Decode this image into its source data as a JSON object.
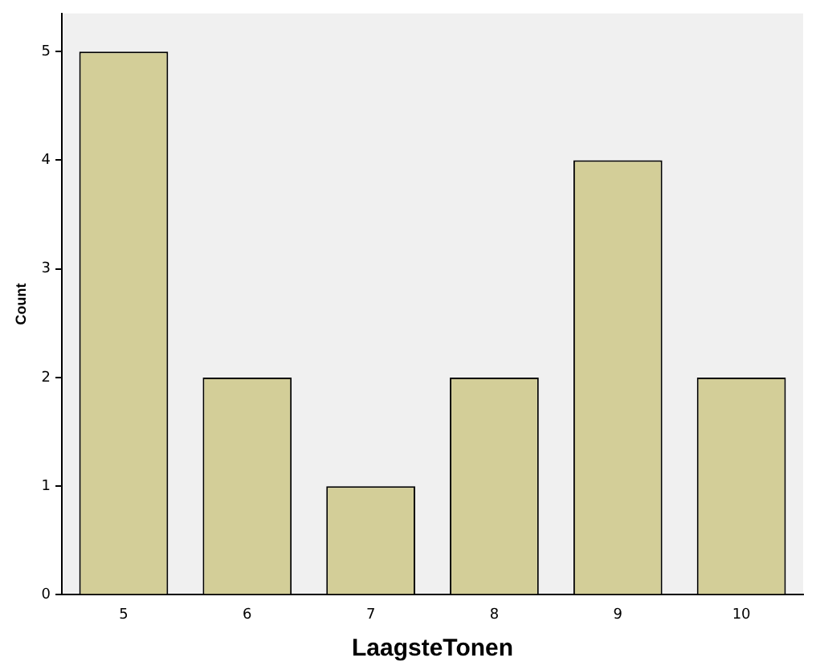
{
  "chart_data": {
    "type": "bar",
    "xlabel": "LaagsteTonen",
    "ylabel": "Count",
    "categories": [
      "5",
      "6",
      "7",
      "8",
      "9",
      "10"
    ],
    "values": [
      5,
      2,
      1,
      2,
      4,
      2
    ],
    "color": "#d3ce98",
    "ylim": [
      0,
      5.35
    ],
    "yticks": [
      0,
      1,
      2,
      3,
      4,
      5
    ],
    "grid": false,
    "legend": false
  }
}
